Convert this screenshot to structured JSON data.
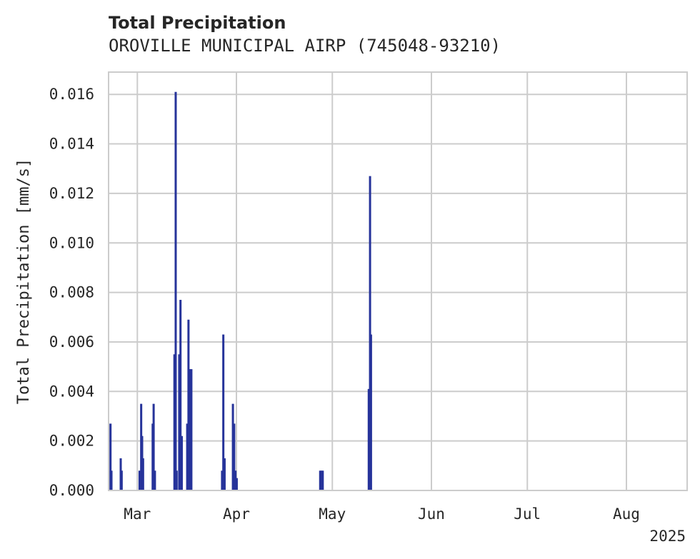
{
  "chart_data": {
    "type": "bar",
    "title": "Total Precipitation",
    "subtitle": "OROVILLE MUNICIPAL AIRP (745048-93210)",
    "xlabel": "",
    "ylabel": "Total Precipitation [mm/s]",
    "x_start": "2025-02-20",
    "x_end": "2025-08-20",
    "x_ticks": [
      {
        "label": "Mar",
        "day": 9
      },
      {
        "label": "Apr",
        "day": 40
      },
      {
        "label": "May",
        "day": 70
      },
      {
        "label": "Jun",
        "day": 101
      },
      {
        "label": "Jul",
        "day": 131
      },
      {
        "label": "Aug",
        "day": 162
      }
    ],
    "year_label": "2025",
    "ylim": [
      0,
      0.0169
    ],
    "y_ticks": [
      "0.000",
      "0.002",
      "0.004",
      "0.006",
      "0.008",
      "0.010",
      "0.012",
      "0.014",
      "0.016"
    ],
    "grid": true,
    "series": [
      {
        "name": "Total Precipitation",
        "color": "#26339a",
        "points": [
          {
            "day": 0.6,
            "value": 0.0027
          },
          {
            "day": 0.9,
            "value": 0.0008
          },
          {
            "day": 3.8,
            "value": 0.0013
          },
          {
            "day": 4.1,
            "value": 0.0008
          },
          {
            "day": 9.7,
            "value": 0.0008
          },
          {
            "day": 10.2,
            "value": 0.0035
          },
          {
            "day": 10.5,
            "value": 0.0022
          },
          {
            "day": 10.8,
            "value": 0.0013
          },
          {
            "day": 13.8,
            "value": 0.0027
          },
          {
            "day": 14.1,
            "value": 0.0035
          },
          {
            "day": 14.5,
            "value": 0.0008
          },
          {
            "day": 20.6,
            "value": 0.0055
          },
          {
            "day": 21.0,
            "value": 0.0161
          },
          {
            "day": 21.3,
            "value": 0.0008
          },
          {
            "day": 22.1,
            "value": 0.0055
          },
          {
            "day": 22.5,
            "value": 0.0077
          },
          {
            "day": 22.9,
            "value": 0.0022
          },
          {
            "day": 24.6,
            "value": 0.0027
          },
          {
            "day": 25.0,
            "value": 0.0069
          },
          {
            "day": 25.5,
            "value": 0.0049
          },
          {
            "day": 25.9,
            "value": 0.0049
          },
          {
            "day": 35.5,
            "value": 0.0008
          },
          {
            "day": 35.9,
            "value": 0.0063
          },
          {
            "day": 36.3,
            "value": 0.0013
          },
          {
            "day": 38.9,
            "value": 0.0035
          },
          {
            "day": 39.3,
            "value": 0.0027
          },
          {
            "day": 39.7,
            "value": 0.0008
          },
          {
            "day": 40.1,
            "value": 0.0005
          },
          {
            "day": 66.2,
            "value": 0.0008
          },
          {
            "day": 66.6,
            "value": 0.0008
          },
          {
            "day": 67.0,
            "value": 0.0008
          },
          {
            "day": 81.4,
            "value": 0.0041
          },
          {
            "day": 81.8,
            "value": 0.0127
          },
          {
            "day": 82.1,
            "value": 0.0063
          }
        ]
      }
    ]
  }
}
